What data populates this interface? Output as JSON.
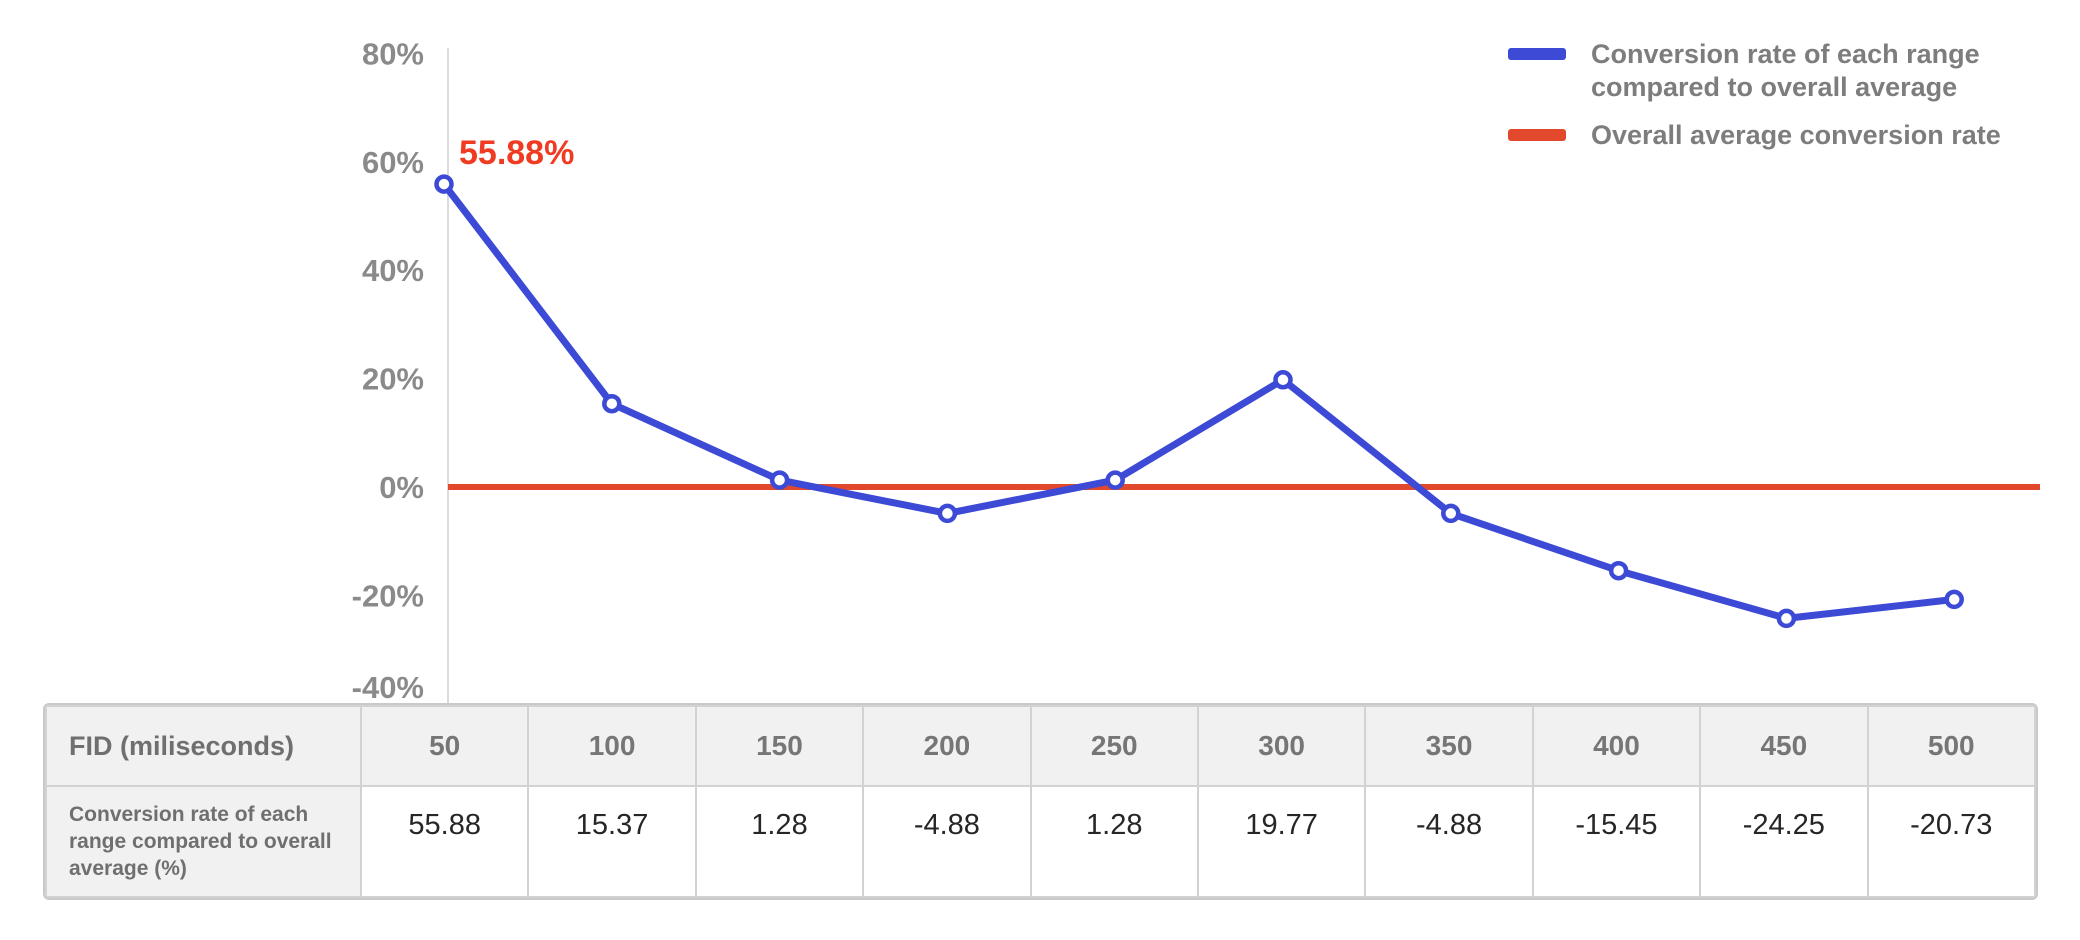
{
  "chart_data": {
    "type": "line",
    "title": "",
    "xlabel": "FID (miliseconds)",
    "ylabel": "",
    "x": [
      50,
      100,
      150,
      200,
      250,
      300,
      350,
      400,
      450,
      500
    ],
    "series": [
      {
        "name": "Conversion rate of each range compared to overall average",
        "values": [
          55.88,
          15.37,
          1.28,
          -4.88,
          1.28,
          19.77,
          -4.88,
          -15.45,
          -24.25,
          -20.73
        ],
        "color": "#3c4ad6",
        "marker": "circle-open"
      }
    ],
    "reference_line": {
      "name": "Overall average conversion rate",
      "value": 0,
      "color": "#e2492c"
    },
    "annotation": {
      "text": "55.88%",
      "point_index": 0,
      "color": "#ee3b22"
    },
    "yticks": {
      "values": [
        80,
        60,
        40,
        20,
        0,
        -20,
        -40
      ],
      "labels": [
        "80%",
        "60%",
        "40%",
        "20%",
        "0%",
        "-20%",
        "-40%"
      ]
    },
    "ylim": [
      -40,
      80
    ],
    "grid": false,
    "legend_position": "top-right"
  },
  "legend": {
    "items": [
      {
        "label": "Conversion rate of each range compared to overall average",
        "color": "#3c4ad6"
      },
      {
        "label": "Overall average conversion rate",
        "color": "#e2492c"
      }
    ]
  },
  "table": {
    "header_label": "FID (miliseconds)",
    "columns": [
      "50",
      "100",
      "150",
      "200",
      "250",
      "300",
      "350",
      "400",
      "450",
      "500"
    ],
    "row_label": "Conversion rate of each range compared to overall average (%)",
    "values": [
      "55.88",
      "15.37",
      "1.28",
      "-4.88",
      "1.28",
      "19.77",
      "-4.88",
      "-15.45",
      "-24.25",
      "-20.73"
    ]
  },
  "colors": {
    "series_blue": "#3c4ad6",
    "reference_red": "#e2492c",
    "annotation_red": "#ee3b22",
    "axis_text": "#8a8a8a",
    "axis_line": "#dcdcdc",
    "legend_text": "#7d7d7d",
    "table_border": "#c9c9c9",
    "table_header_bg": "#f1f1f1",
    "table_header_text": "#767676",
    "table_value_text": "#262626"
  }
}
